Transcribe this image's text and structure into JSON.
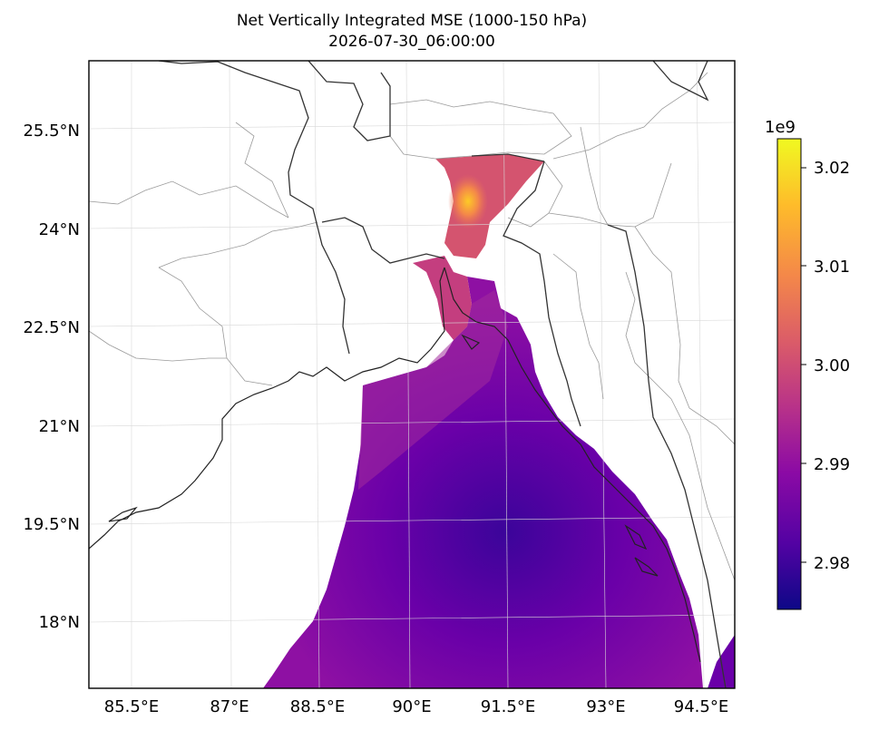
{
  "title": "Net Vertically Integrated MSE (1000-150 hPa)",
  "subtitle": "2026-07-30_06:00:00",
  "map": {
    "lon_range": [
      84.85,
      94.9
    ],
    "lat_range": [
      16.95,
      26.5
    ],
    "x_ticks": [
      "85.5°E",
      "87°E",
      "88.5°E",
      "90°E",
      "91.5°E",
      "93°E",
      "94.5°E"
    ],
    "y_ticks": [
      "25.5°N",
      "24°N",
      "22.5°N",
      "21°N",
      "19.5°N",
      "18°N"
    ],
    "grid": true
  },
  "colorbar": {
    "colormap": "plasma",
    "range": [
      2.9755,
      3.0228
    ],
    "offset_label": "1e9",
    "ticks": [
      "3.02",
      "3.01",
      "3.00",
      "2.99",
      "2.98"
    ],
    "colors": [
      "#0d0887",
      "#5302a3",
      "#8b0aa5",
      "#b83289",
      "#db5c68",
      "#f48849",
      "#febc2a",
      "#f0f921"
    ]
  }
}
